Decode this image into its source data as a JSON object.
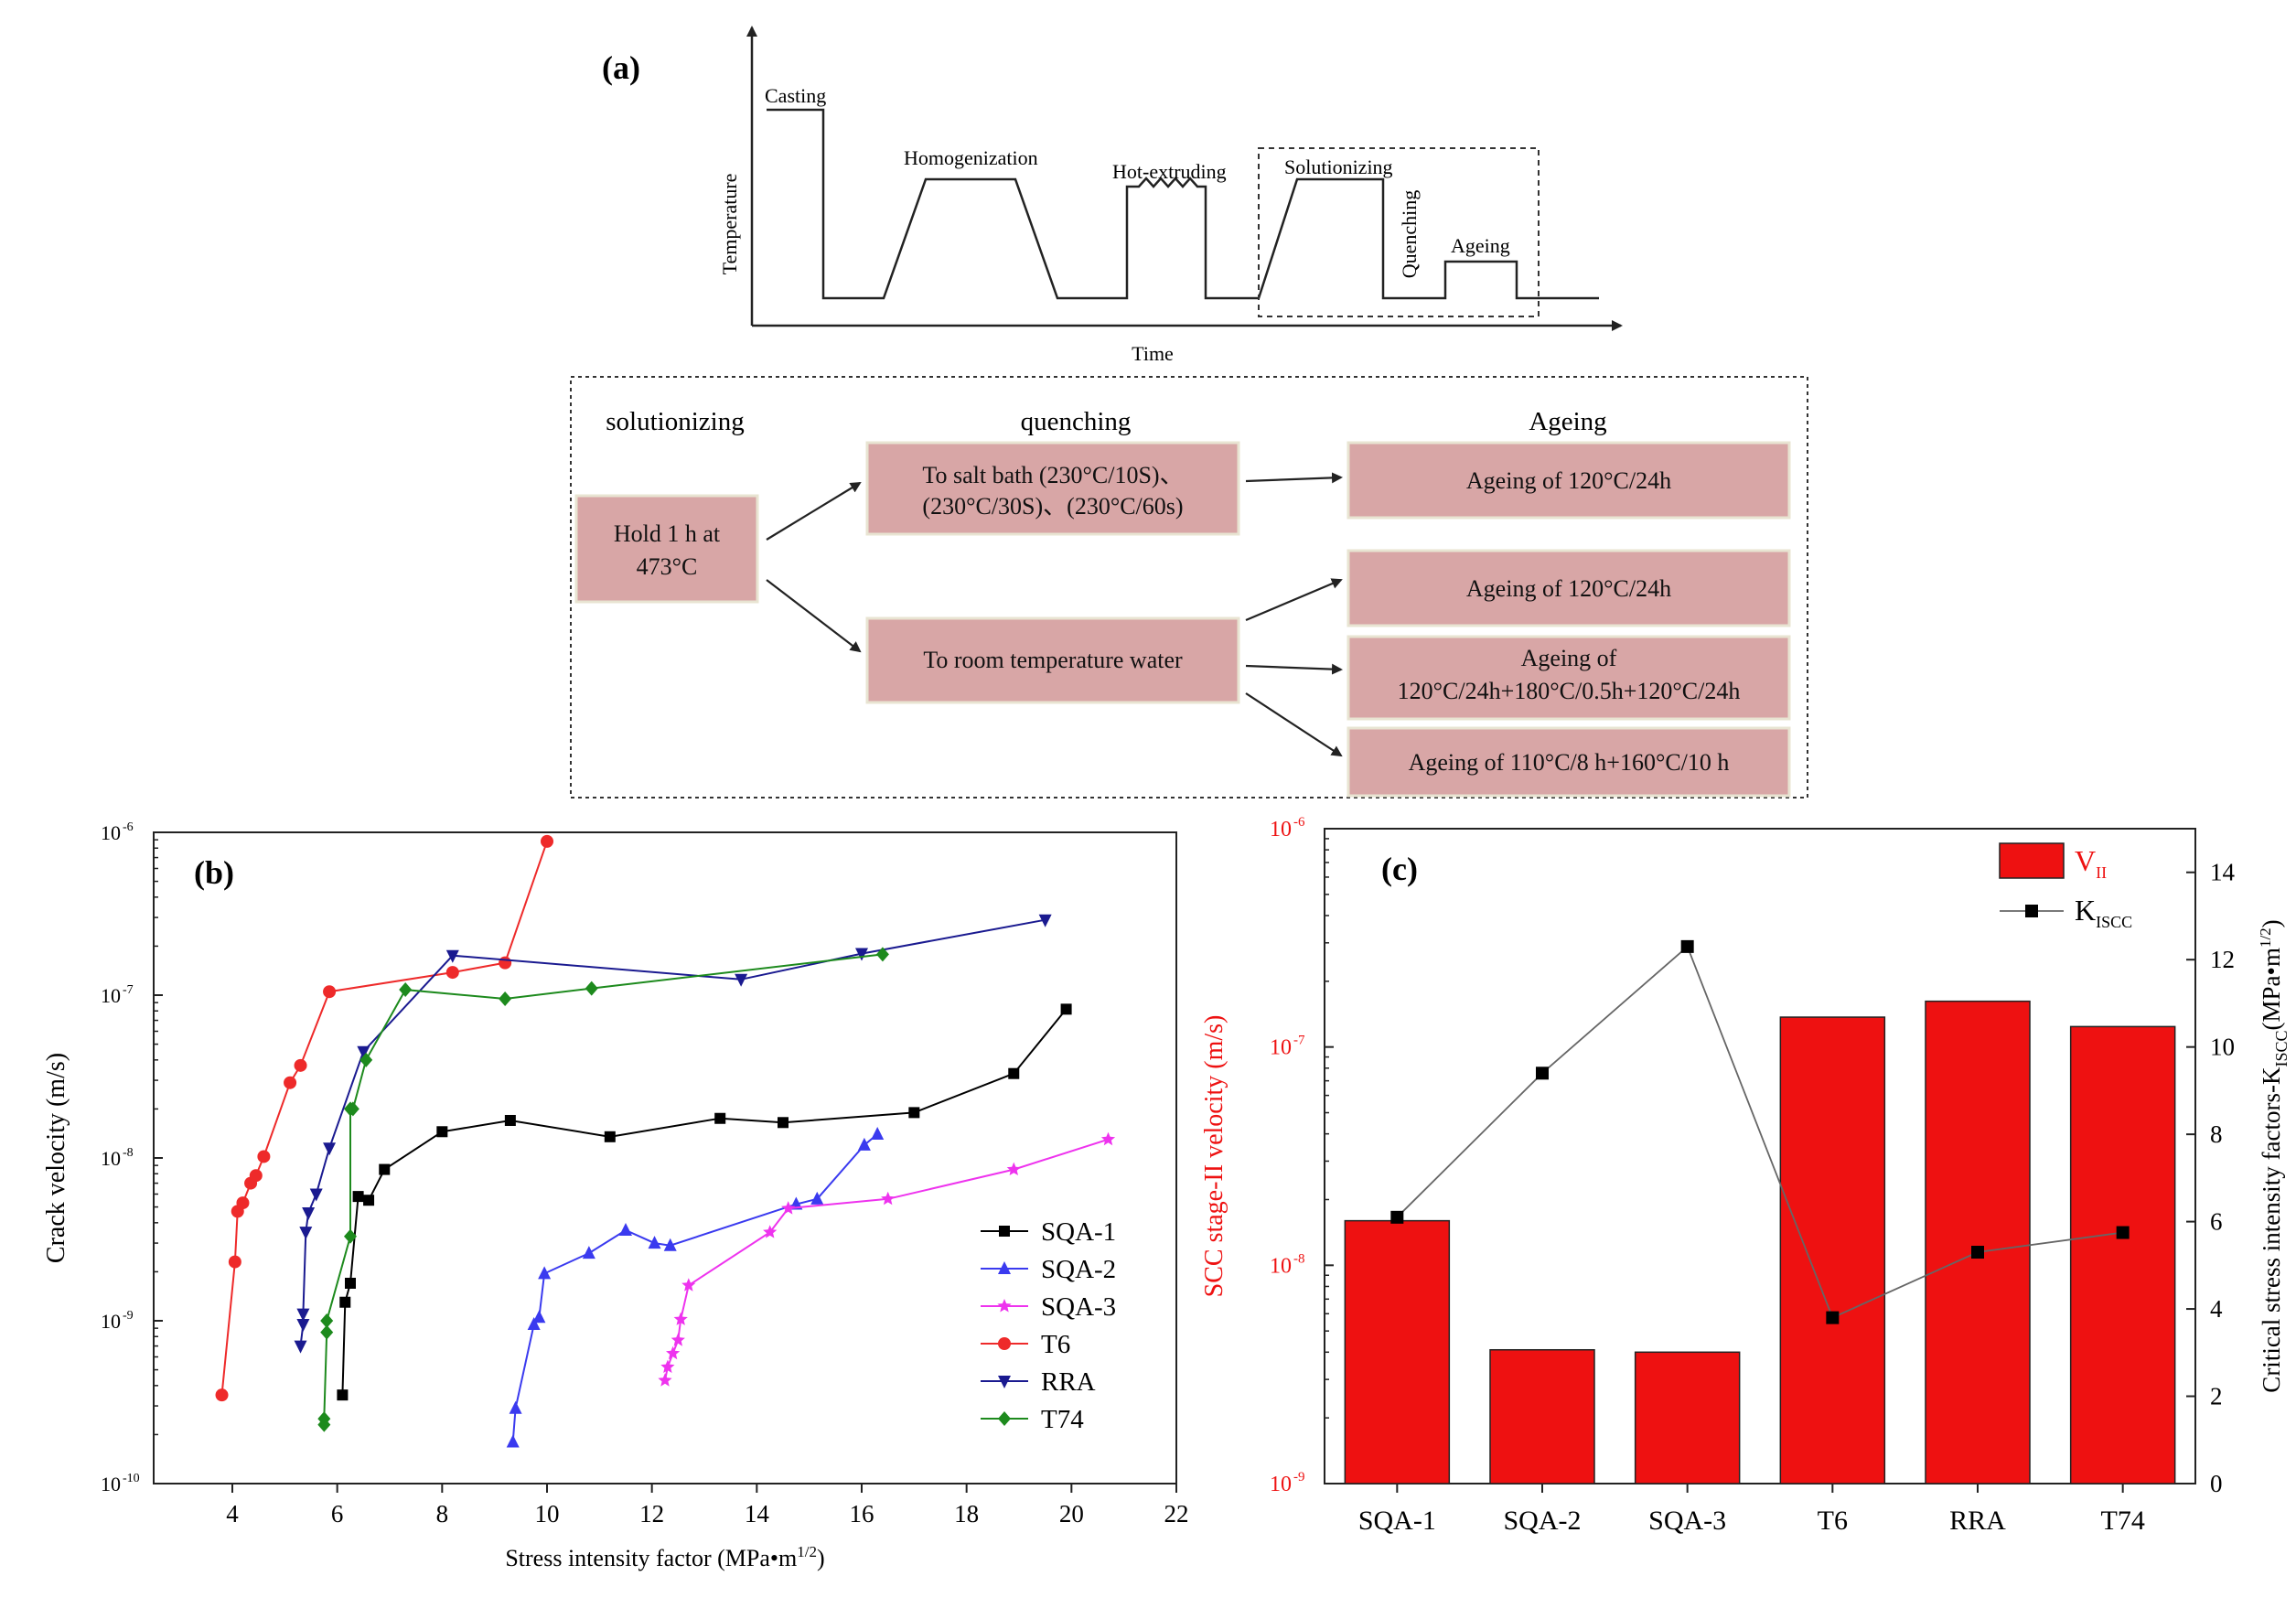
{
  "panel_a": {
    "label": "(a)",
    "stages": [
      "Casting",
      "Homogenization",
      "Hot-extruding",
      "Solutionizing",
      "Quenching",
      "Ageing"
    ],
    "y_axis": "Temperature",
    "x_axis": "Time",
    "flow": {
      "headers": [
        "solutionizing",
        "quenching",
        "Ageing"
      ],
      "start_box": [
        "Hold 1 h at",
        "473°C"
      ],
      "quench_salt": [
        "To salt bath (230°C/10S)、",
        "(230°C/30S)、(230°C/60s)"
      ],
      "quench_water": [
        "To room temperature water"
      ],
      "ageing_1": [
        "Ageing of 120°C/24h"
      ],
      "ageing_2": [
        "Ageing of 120°C/24h"
      ],
      "ageing_3": [
        "Ageing of",
        "120°C/24h+180°C/0.5h+120°C/24h"
      ],
      "ageing_4": [
        "Ageing of 110°C/8 h+160°C/10 h"
      ]
    }
  },
  "chart_data": [
    {
      "type": "line",
      "panel": "(b)",
      "title": "",
      "xlabel": "Stress intensity factor (MPa•m",
      "xlabel_sup": "1/2",
      "xlabel_end": ")",
      "ylabel": "Crack velocity (m/s)",
      "xlim": [
        2.5,
        22
      ],
      "xticks": [
        4,
        6,
        8,
        10,
        12,
        14,
        16,
        18,
        20,
        22
      ],
      "ylim_exp": [
        -10,
        -6
      ],
      "ytick_labels": [
        "10",
        "10",
        "10",
        "10",
        "10"
      ],
      "ytick_exps": [
        "-10",
        "-9",
        "-8",
        "-7",
        "-6"
      ],
      "legend_position": "bottom-right",
      "series": [
        {
          "name": "SQA-1",
          "color": "#000000",
          "marker": "square",
          "x": [
            6.1,
            6.15,
            6.25,
            6.4,
            6.6,
            6.9,
            8.0,
            9.3,
            11.2,
            13.3,
            14.5,
            17.0,
            18.9,
            19.9
          ],
          "y": [
            3.5e-10,
            1.3e-09,
            1.7e-09,
            5.8e-09,
            5.5e-09,
            8.5e-09,
            1.45e-08,
            1.7e-08,
            1.35e-08,
            1.75e-08,
            1.65e-08,
            1.9e-08,
            3.3e-08,
            8.2e-08
          ]
        },
        {
          "name": "SQA-2",
          "color": "#3a3aef",
          "marker": "triangle-up",
          "x": [
            9.35,
            9.4,
            9.75,
            9.85,
            9.95,
            10.8,
            11.5,
            12.05,
            12.35,
            14.75,
            15.15,
            16.05,
            16.3
          ],
          "y": [
            1.8e-10,
            2.9e-10,
            9.5e-10,
            1.05e-09,
            1.95e-09,
            2.6e-09,
            3.6e-09,
            3e-09,
            2.9e-09,
            5.2e-09,
            5.6e-09,
            1.2e-08,
            1.4e-08
          ]
        },
        {
          "name": "SQA-3",
          "color": "#ee33ee",
          "marker": "star",
          "x": [
            12.25,
            12.3,
            12.4,
            12.5,
            12.55,
            12.7,
            14.25,
            14.6,
            16.5,
            18.9,
            20.7
          ],
          "y": [
            4.3e-10,
            5.2e-10,
            6.3e-10,
            7.6e-10,
            1.02e-09,
            1.65e-09,
            3.5e-09,
            4.9e-09,
            5.6e-09,
            8.5e-09,
            1.3e-08
          ]
        },
        {
          "name": "T6",
          "color": "#ee2a2a",
          "marker": "circle",
          "x": [
            3.8,
            4.05,
            4.1,
            4.2,
            4.35,
            4.45,
            4.6,
            5.1,
            5.3,
            5.85,
            8.2,
            9.2,
            10.0
          ],
          "y": [
            3.5e-10,
            2.3e-09,
            4.7e-09,
            5.3e-09,
            7e-09,
            7.8e-09,
            1.02e-08,
            2.9e-08,
            3.7e-08,
            1.05e-07,
            1.38e-07,
            1.58e-07,
            8.8e-07
          ]
        },
        {
          "name": "RRA",
          "color": "#1a1a90",
          "marker": "triangle-down",
          "x": [
            5.3,
            5.35,
            5.35,
            5.4,
            5.45,
            5.6,
            5.85,
            6.5,
            8.2,
            13.7,
            16.0,
            19.5
          ],
          "y": [
            7e-10,
            9.5e-10,
            1.1e-09,
            3.5e-09,
            4.6e-09,
            6e-09,
            1.15e-08,
            4.5e-08,
            1.75e-07,
            1.25e-07,
            1.8e-07,
            2.9e-07
          ]
        },
        {
          "name": "T74",
          "color": "#1d8a1d",
          "marker": "diamond",
          "x": [
            5.75,
            5.75,
            5.8,
            5.8,
            6.25,
            6.25,
            6.3,
            6.55,
            7.3,
            9.2,
            10.85,
            16.4
          ],
          "y": [
            2.3e-10,
            2.5e-10,
            8.5e-10,
            1e-09,
            3.3e-09,
            2e-08,
            2e-08,
            4e-08,
            1.08e-07,
            9.5e-08,
            1.1e-07,
            1.78e-07
          ]
        }
      ]
    },
    {
      "type": "bar",
      "panel": "(c)",
      "title": "",
      "categories": [
        "SQA-1",
        "SQA-2",
        "SQA-3",
        "T6",
        "RRA",
        "T74"
      ],
      "ylabel_left": "SCC stage-II velocity (m/s)",
      "ylabel_right_pre": "Critical stress intensity factors-K",
      "ylabel_right_sub": "ISCC",
      "ylabel_right_mid": "(MPa•m",
      "ylabel_right_sup": "1/2",
      "ylabel_right_end": ")",
      "ylim_left_exp": [
        -9,
        -6
      ],
      "ytick_left_labels": [
        "10",
        "10",
        "10",
        "10"
      ],
      "ytick_left_exps": [
        "-9",
        "-8",
        "-7",
        "-6"
      ],
      "ylim_right": [
        0,
        15
      ],
      "yticks_right": [
        0,
        2,
        4,
        6,
        8,
        10,
        12,
        14
      ],
      "legend_position": "top-right",
      "series": [
        {
          "name": "V",
          "name_sub": "II",
          "type": "bar",
          "axis": "left",
          "color": "#ee1111",
          "values": [
            1.6e-08,
            4.1e-09,
            4e-09,
            1.37e-07,
            1.62e-07,
            1.24e-07
          ]
        },
        {
          "name": "K",
          "name_sub": "ISCC",
          "type": "line",
          "axis": "right",
          "color": "#000000",
          "values": [
            6.1,
            9.4,
            12.3,
            3.8,
            5.3,
            5.75
          ]
        }
      ]
    }
  ]
}
